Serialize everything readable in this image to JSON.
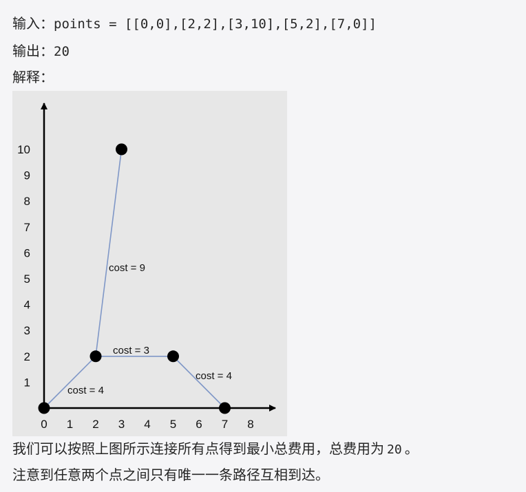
{
  "example": {
    "input_label": "输入：",
    "input_value": "points = [[0,0],[2,2],[3,10],[5,2],[7,0]]",
    "output_label": "输出：",
    "output_value": "20",
    "explanation_label": "解释：",
    "explanation_line1_prefix": "我们可以按照上图所示连接所有点得到最小总费用，总费用为",
    "explanation_line1_value": "20",
    "explanation_line1_suffix": "。",
    "explanation_line2": "注意到任意两个点之间只有唯一一条路径互相到达。"
  },
  "chart_data": {
    "type": "scatter",
    "x_ticks": [
      "0",
      "1",
      "2",
      "3",
      "4",
      "5",
      "6",
      "7",
      "8"
    ],
    "y_ticks": [
      "1",
      "2",
      "3",
      "4",
      "5",
      "6",
      "7",
      "8",
      "9",
      "10"
    ],
    "points": [
      {
        "x": 0,
        "y": 0
      },
      {
        "x": 2,
        "y": 2
      },
      {
        "x": 3,
        "y": 10
      },
      {
        "x": 5,
        "y": 2
      },
      {
        "x": 7,
        "y": 0
      }
    ],
    "edges": [
      {
        "from": 0,
        "to": 1,
        "label": "cost = 4"
      },
      {
        "from": 1,
        "to": 2,
        "label": "cost = 9"
      },
      {
        "from": 1,
        "to": 3,
        "label": "cost = 3"
      },
      {
        "from": 3,
        "to": 4,
        "label": "cost = 4"
      }
    ],
    "colors": {
      "edge": "#7f97c7",
      "point": "#000000",
      "axis": "#000000",
      "background": "#e7e7e7"
    }
  }
}
